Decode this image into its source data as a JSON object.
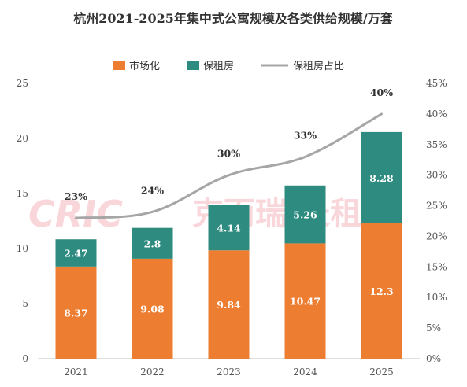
{
  "chart_data": {
    "type": "bar",
    "title": "杭州2021-2025年集中式公寓规模及各类供给规模/万套",
    "categories": [
      "2021",
      "2022",
      "2023",
      "2024",
      "2025"
    ],
    "series": [
      {
        "name": "市场化",
        "values": [
          8.37,
          9.08,
          9.84,
          10.47,
          12.3
        ],
        "color": "#ed7d31",
        "kind": "stacked-bar"
      },
      {
        "name": "保租房",
        "values": [
          2.47,
          2.8,
          4.14,
          5.26,
          8.28
        ],
        "color": "#2e8b80",
        "kind": "stacked-bar"
      },
      {
        "name": "保租房占比",
        "values": [
          23,
          24,
          30,
          33,
          40
        ],
        "value_labels": [
          "23%",
          "24%",
          "30%",
          "33%",
          "40%"
        ],
        "color": "#a6a6a6",
        "kind": "line",
        "axis": "right"
      }
    ],
    "ylim": [
      0,
      25
    ],
    "yticks": [
      "0",
      "5",
      "10",
      "15",
      "20",
      "25"
    ],
    "y2lim": [
      0,
      45
    ],
    "y2ticks": [
      "0%",
      "5%",
      "10%",
      "15%",
      "20%",
      "25%",
      "30%",
      "35%",
      "40%",
      "45%"
    ],
    "legend_position": "top",
    "grid": false
  },
  "watermark": {
    "logo": "CRIC",
    "text": "克而瑞·长租"
  }
}
